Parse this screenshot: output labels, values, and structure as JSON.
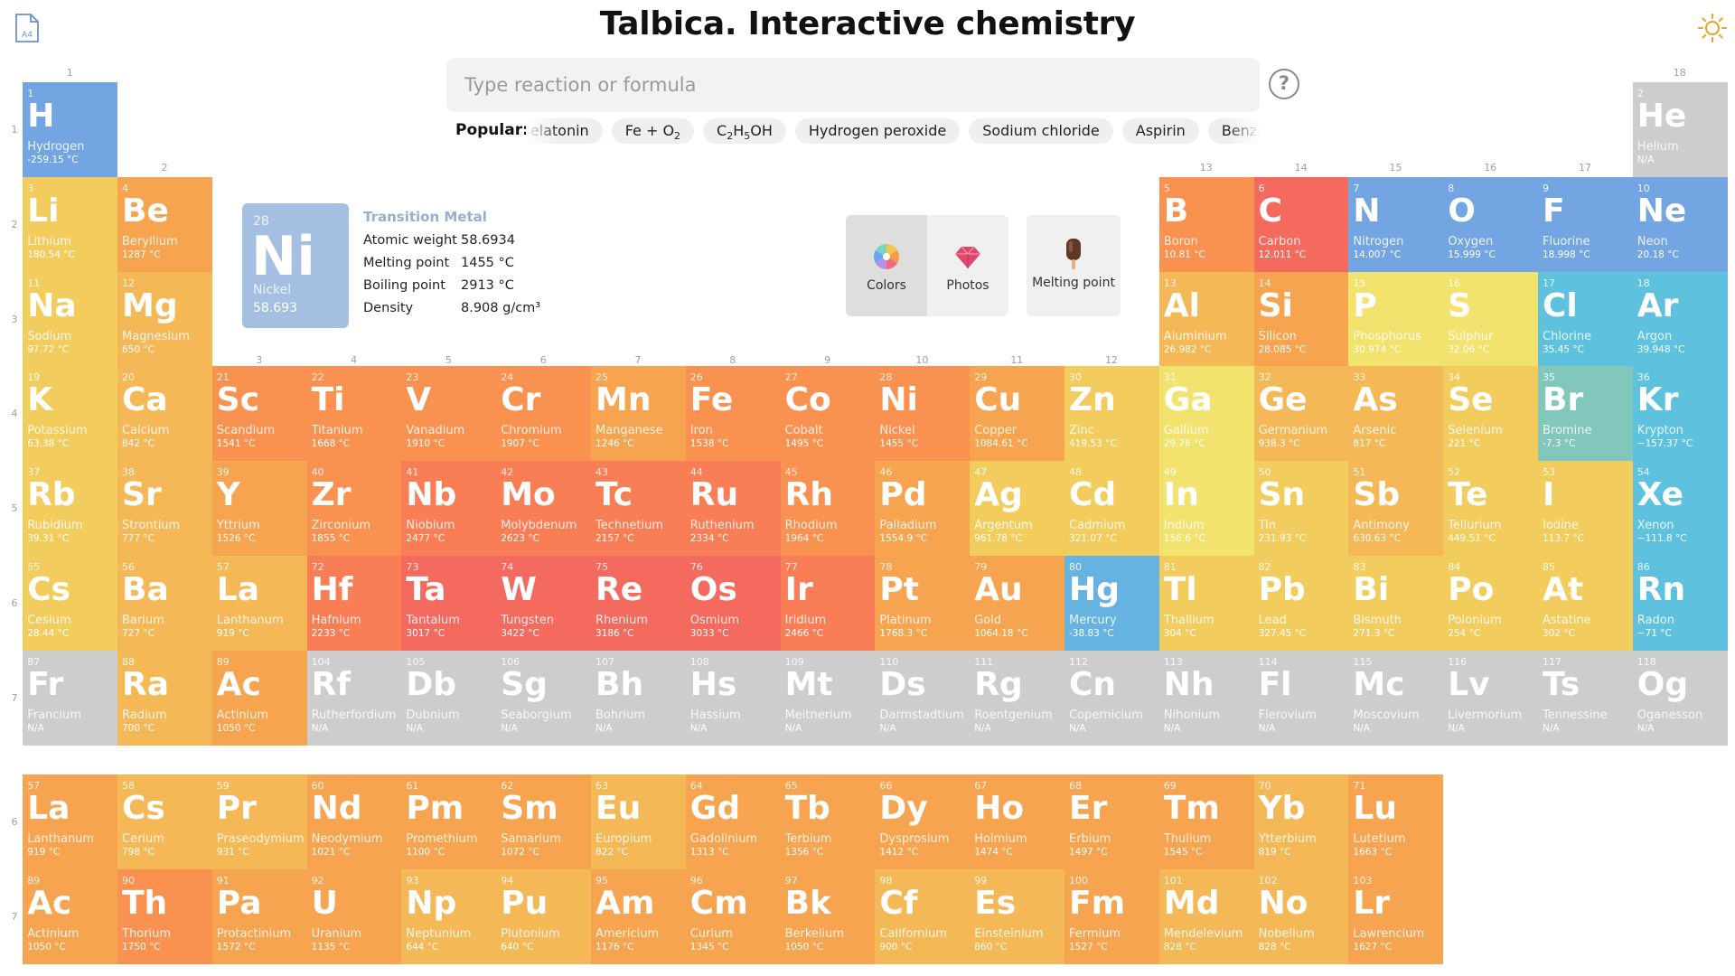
{
  "header": {
    "title": "Talbica. Interactive chemistry"
  },
  "icons": {
    "document": "document-a4-icon",
    "theme": "sun-icon",
    "help": "help-icon",
    "colors": "color-wheel-icon",
    "photos": "gem-icon",
    "melting": "popsicle-icon"
  },
  "doc_icon_label": "A4",
  "search": {
    "placeholder": "Type reaction or formula",
    "value": ""
  },
  "help_label": "?",
  "popular": {
    "label": "Popular:",
    "chips": [
      {
        "html": "Melatonin"
      },
      {
        "html": "Fe + O<sub>2</sub>"
      },
      {
        "html": "C<sub>2</sub>H<sub>5</sub>OH"
      },
      {
        "html": "Hydrogen peroxide"
      },
      {
        "html": "Sodium chloride"
      },
      {
        "html": "Aspirin"
      },
      {
        "html": "Benzene"
      }
    ]
  },
  "groups": [
    "1",
    "2",
    "3",
    "4",
    "5",
    "6",
    "7",
    "8",
    "9",
    "10",
    "11",
    "12",
    "13",
    "14",
    "15",
    "16",
    "17",
    "18"
  ],
  "periods": [
    "1",
    "2",
    "3",
    "4",
    "5",
    "6",
    "7"
  ],
  "fblock_periods": [
    "6",
    "7"
  ],
  "selected": {
    "category": "Transition Metal",
    "number": "28",
    "symbol": "Ni",
    "name": "Nickel",
    "weight": "58.693",
    "props": [
      {
        "label": "Atomic weight",
        "value": "58.6934"
      },
      {
        "label": "Melting point",
        "value": "1455 °C"
      },
      {
        "label": "Boiling point",
        "value": "2913 °C"
      },
      {
        "label": "Density",
        "value": "8.908 g/cm³"
      }
    ]
  },
  "modes": {
    "colors": "Colors",
    "photos": "Photos",
    "melting": "Melting point"
  },
  "colors": {
    "A": "#f2cd5e",
    "B": "#f5b857",
    "C": "#f6a44f",
    "D": "#f99150",
    "E": "#f97e56",
    "F": "#f46a5f",
    "G": "#f2e36e",
    "H": "#66b3e2",
    "I": "#5fb7e5",
    "J": "#74a5e3",
    "K": "#5ec2df",
    "L": "#82c7bb",
    "M": "#cdcdcd"
  },
  "elements": [
    [
      "1",
      "H",
      "Hydrogen",
      "-259.15 °C",
      "J",
      1,
      1
    ],
    [
      "2",
      "He",
      "Helium",
      "N/A",
      "M",
      18,
      1
    ],
    [
      "3",
      "Li",
      "Lithium",
      "180.54 °C",
      "A",
      1,
      2
    ],
    [
      "4",
      "Be",
      "Beryllium",
      "1287 °C",
      "C",
      2,
      2
    ],
    [
      "5",
      "B",
      "Boron",
      "10.81 °C",
      "D",
      13,
      2
    ],
    [
      "6",
      "C",
      "Carbon",
      "12.011 °C",
      "F",
      14,
      2
    ],
    [
      "7",
      "N",
      "Nitrogen",
      "14.007 °C",
      "J",
      15,
      2
    ],
    [
      "8",
      "O",
      "Oxygen",
      "15.999 °C",
      "J",
      16,
      2
    ],
    [
      "9",
      "F",
      "Fluorine",
      "18.998 °C",
      "J",
      17,
      2
    ],
    [
      "10",
      "Ne",
      "Neon",
      "20.18 °C",
      "J",
      18,
      2
    ],
    [
      "11",
      "Na",
      "Sodium",
      "97.72 °C",
      "A",
      1,
      3
    ],
    [
      "12",
      "Mg",
      "Magnesium",
      "650 °C",
      "B",
      2,
      3
    ],
    [
      "13",
      "Al",
      "Aluminium",
      "26.982 °C",
      "B",
      13,
      3
    ],
    [
      "14",
      "Si",
      "Silicon",
      "28.085 °C",
      "C",
      14,
      3
    ],
    [
      "15",
      "P",
      "Phosphorus",
      "30.974 °C",
      "G",
      15,
      3
    ],
    [
      "16",
      "S",
      "Sulphur",
      "32.06 °C",
      "G",
      16,
      3
    ],
    [
      "17",
      "Cl",
      "Chlorine",
      "35.45 °C",
      "K",
      17,
      3
    ],
    [
      "18",
      "Ar",
      "Argon",
      "39.948 °C",
      "K",
      18,
      3
    ],
    [
      "19",
      "K",
      "Potassium",
      "63.38 °C",
      "A",
      1,
      4
    ],
    [
      "20",
      "Ca",
      "Calcium",
      "842 °C",
      "B",
      2,
      4
    ],
    [
      "21",
      "Sc",
      "Scandium",
      "1541 °C",
      "D",
      3,
      4
    ],
    [
      "22",
      "Ti",
      "Titanium",
      "1668 °C",
      "D",
      4,
      4
    ],
    [
      "23",
      "V",
      "Vanadium",
      "1910 °C",
      "D",
      5,
      4
    ],
    [
      "24",
      "Cr",
      "Chromium",
      "1907 °C",
      "D",
      6,
      4
    ],
    [
      "25",
      "Mn",
      "Manganese",
      "1246 °C",
      "C",
      7,
      4
    ],
    [
      "26",
      "Fe",
      "Iron",
      "1538 °C",
      "D",
      8,
      4
    ],
    [
      "27",
      "Co",
      "Cobalt",
      "1495 °C",
      "D",
      9,
      4
    ],
    [
      "28",
      "Ni",
      "Nickel",
      "1455 °C",
      "D",
      10,
      4
    ],
    [
      "29",
      "Cu",
      "Copper",
      "1084.61 °C",
      "C",
      11,
      4
    ],
    [
      "30",
      "Zn",
      "Zinc",
      "419.53 °C",
      "A",
      12,
      4
    ],
    [
      "31",
      "Ga",
      "Gallium",
      "29.76 °C",
      "G",
      13,
      4
    ],
    [
      "32",
      "Ge",
      "Germanium",
      "938.3 °C",
      "B",
      14,
      4
    ],
    [
      "33",
      "As",
      "Arsenic",
      "817 °C",
      "B",
      15,
      4
    ],
    [
      "34",
      "Se",
      "Selenium",
      "221 °C",
      "A",
      16,
      4
    ],
    [
      "35",
      "Br",
      "Bromine",
      "-7.3 °C",
      "L",
      17,
      4
    ],
    [
      "36",
      "Kr",
      "Krypton",
      "−157.37 °C",
      "K",
      18,
      4
    ],
    [
      "37",
      "Rb",
      "Rubidium",
      "39.31 °C",
      "A",
      1,
      5
    ],
    [
      "38",
      "Sr",
      "Strontium",
      "777 °C",
      "B",
      2,
      5
    ],
    [
      "39",
      "Y",
      "Yttrium",
      "1526 °C",
      "C",
      3,
      5
    ],
    [
      "40",
      "Zr",
      "Zirconium",
      "1855 °C",
      "D",
      4,
      5
    ],
    [
      "41",
      "Nb",
      "Niobium",
      "2477 °C",
      "E",
      5,
      5
    ],
    [
      "42",
      "Mo",
      "Molybdenum",
      "2623 °C",
      "E",
      6,
      5
    ],
    [
      "43",
      "Tc",
      "Technetium",
      "2157 °C",
      "E",
      7,
      5
    ],
    [
      "44",
      "Ru",
      "Ruthenium",
      "2334 °C",
      "E",
      8,
      5
    ],
    [
      "45",
      "Rh",
      "Rhodium",
      "1964 °C",
      "D",
      9,
      5
    ],
    [
      "46",
      "Pd",
      "Palladium",
      "1554.9 °C",
      "C",
      10,
      5
    ],
    [
      "47",
      "Ag",
      "Argentum",
      "961.78 °C",
      "A",
      11,
      5
    ],
    [
      "48",
      "Cd",
      "Cadmium",
      "321.07 °C",
      "A",
      12,
      5
    ],
    [
      "49",
      "In",
      "Indium",
      "156.6 °C",
      "G",
      13,
      5
    ],
    [
      "50",
      "Sn",
      "Tin",
      "231.93 °C",
      "A",
      14,
      5
    ],
    [
      "51",
      "Sb",
      "Antimony",
      "630.63 °C",
      "B",
      15,
      5
    ],
    [
      "52",
      "Te",
      "Tellurium",
      "449.51 °C",
      "A",
      16,
      5
    ],
    [
      "53",
      "I",
      "Iodine",
      "113.7 °C",
      "A",
      17,
      5
    ],
    [
      "54",
      "Xe",
      "Xenon",
      "−111.8 °C",
      "K",
      18,
      5
    ],
    [
      "55",
      "Cs",
      "Cesium",
      "28.44 °C",
      "A",
      1,
      6
    ],
    [
      "56",
      "Ba",
      "Barium",
      "727 °C",
      "B",
      2,
      6
    ],
    [
      "57",
      "La",
      "Lanthanum",
      "919 °C",
      "B",
      3,
      6
    ],
    [
      "72",
      "Hf",
      "Hafnium",
      "2233 °C",
      "E",
      4,
      6
    ],
    [
      "73",
      "Ta",
      "Tantalum",
      "3017 °C",
      "F",
      5,
      6
    ],
    [
      "74",
      "W",
      "Tungsten",
      "3422 °C",
      "F",
      6,
      6
    ],
    [
      "75",
      "Re",
      "Rhenium",
      "3186 °C",
      "F",
      7,
      6
    ],
    [
      "76",
      "Os",
      "Osmium",
      "3033 °C",
      "F",
      8,
      6
    ],
    [
      "77",
      "Ir",
      "Iridium",
      "2466 °C",
      "E",
      9,
      6
    ],
    [
      "78",
      "Pt",
      "Platinum",
      "1768.3 °C",
      "C",
      10,
      6
    ],
    [
      "79",
      "Au",
      "Gold",
      "1064.18 °C",
      "C",
      11,
      6
    ],
    [
      "80",
      "Hg",
      "Mercury",
      "-38.83 °C",
      "H",
      12,
      6
    ],
    [
      "81",
      "Tl",
      "Thallium",
      "304 °C",
      "A",
      13,
      6
    ],
    [
      "82",
      "Pb",
      "Lead",
      "327.45 °C",
      "A",
      14,
      6
    ],
    [
      "83",
      "Bi",
      "Bismuth",
      "271.3 °C",
      "A",
      15,
      6
    ],
    [
      "84",
      "Po",
      "Polonium",
      "254 °C",
      "A",
      16,
      6
    ],
    [
      "85",
      "At",
      "Astatine",
      "302 °C",
      "A",
      17,
      6
    ],
    [
      "86",
      "Rn",
      "Radon",
      "−71 °C",
      "K",
      18,
      6
    ],
    [
      "87",
      "Fr",
      "Francium",
      "N/A",
      "M",
      1,
      7
    ],
    [
      "88",
      "Ra",
      "Radium",
      "700 °C",
      "B",
      2,
      7
    ],
    [
      "89",
      "Ac",
      "Actinium",
      "1050 °C",
      "C",
      3,
      7
    ],
    [
      "104",
      "Rf",
      "Rutherfordium",
      "N/A",
      "M",
      4,
      7
    ],
    [
      "105",
      "Db",
      "Dubnium",
      "N/A",
      "M",
      5,
      7
    ],
    [
      "106",
      "Sg",
      "Seaborgium",
      "N/A",
      "M",
      6,
      7
    ],
    [
      "107",
      "Bh",
      "Bohrium",
      "N/A",
      "M",
      7,
      7
    ],
    [
      "108",
      "Hs",
      "Hassium",
      "N/A",
      "M",
      8,
      7
    ],
    [
      "109",
      "Mt",
      "Meitnerium",
      "N/A",
      "M",
      9,
      7
    ],
    [
      "110",
      "Ds",
      "Darmstadtium",
      "N/A",
      "M",
      10,
      7
    ],
    [
      "111",
      "Rg",
      "Roentgenium",
      "N/A",
      "M",
      11,
      7
    ],
    [
      "112",
      "Cn",
      "Copernicium",
      "N/A",
      "M",
      12,
      7
    ],
    [
      "113",
      "Nh",
      "Nihonium",
      "N/A",
      "M",
      13,
      7
    ],
    [
      "114",
      "Fl",
      "Flerovium",
      "N/A",
      "M",
      14,
      7
    ],
    [
      "115",
      "Mc",
      "Moscovium",
      "N/A",
      "M",
      15,
      7
    ],
    [
      "116",
      "Lv",
      "Livermorium",
      "N/A",
      "M",
      16,
      7
    ],
    [
      "117",
      "Ts",
      "Tennessine",
      "N/A",
      "M",
      17,
      7
    ],
    [
      "118",
      "Og",
      "Oganesson",
      "N/A",
      "M",
      18,
      7
    ],
    [
      "57",
      "La",
      "Lanthanum",
      "919 °C",
      "C",
      1,
      8
    ],
    [
      "58",
      "Cs",
      "Cerium",
      "798 °C",
      "B",
      2,
      8
    ],
    [
      "59",
      "Pr",
      "Praseodymium",
      "931 °C",
      "B",
      3,
      8
    ],
    [
      "60",
      "Nd",
      "Neodymium",
      "1021 °C",
      "C",
      4,
      8
    ],
    [
      "61",
      "Pm",
      "Promethium",
      "1100 °C",
      "C",
      5,
      8
    ],
    [
      "62",
      "Sm",
      "Samarium",
      "1072 °C",
      "C",
      6,
      8
    ],
    [
      "63",
      "Eu",
      "Europium",
      "822 °C",
      "B",
      7,
      8
    ],
    [
      "64",
      "Gd",
      "Gadolinium",
      "1313 °C",
      "C",
      8,
      8
    ],
    [
      "65",
      "Tb",
      "Terbium",
      "1356 °C",
      "C",
      9,
      8
    ],
    [
      "66",
      "Dy",
      "Dysprosium",
      "1412 °C",
      "C",
      10,
      8
    ],
    [
      "67",
      "Ho",
      "Holmium",
      "1474 °C",
      "C",
      11,
      8
    ],
    [
      "68",
      "Er",
      "Erbium",
      "1497 °C",
      "C",
      12,
      8
    ],
    [
      "69",
      "Tm",
      "Thulium",
      "1545 °C",
      "C",
      13,
      8
    ],
    [
      "70",
      "Yb",
      "Ytterbium",
      "819 °C",
      "B",
      14,
      8
    ],
    [
      "71",
      "Lu",
      "Lutetium",
      "1663 °C",
      "C",
      15,
      8
    ],
    [
      "89",
      "Ac",
      "Actinium",
      "1050 °C",
      "C",
      1,
      9
    ],
    [
      "90",
      "Th",
      "Thorium",
      "1750 °C",
      "D",
      2,
      9
    ],
    [
      "91",
      "Pa",
      "Protactinium",
      "1572 °C",
      "C",
      3,
      9
    ],
    [
      "92",
      "U",
      "Uranium",
      "1135 °C",
      "C",
      4,
      9
    ],
    [
      "93",
      "Np",
      "Neptunium",
      "644 °C",
      "B",
      5,
      9
    ],
    [
      "94",
      "Pu",
      "Plutonium",
      "640 °C",
      "B",
      6,
      9
    ],
    [
      "95",
      "Am",
      "Americium",
      "1176 °C",
      "C",
      7,
      9
    ],
    [
      "96",
      "Cm",
      "Curium",
      "1345 °C",
      "C",
      8,
      9
    ],
    [
      "97",
      "Bk",
      "Berkelium",
      "1050 °C",
      "C",
      9,
      9
    ],
    [
      "98",
      "Cf",
      "Californium",
      "900 °C",
      "B",
      10,
      9
    ],
    [
      "99",
      "Es",
      "Einsteinium",
      "860 °C",
      "B",
      11,
      9
    ],
    [
      "100",
      "Fm",
      "Fermium",
      "1527 °C",
      "C",
      12,
      9
    ],
    [
      "101",
      "Md",
      "Mendelevium",
      "828 °C",
      "B",
      13,
      9
    ],
    [
      "102",
      "No",
      "Nobelium",
      "828 °C",
      "B",
      14,
      9
    ],
    [
      "103",
      "Lr",
      "Lawrencium",
      "1627 °C",
      "C",
      15,
      9
    ]
  ]
}
